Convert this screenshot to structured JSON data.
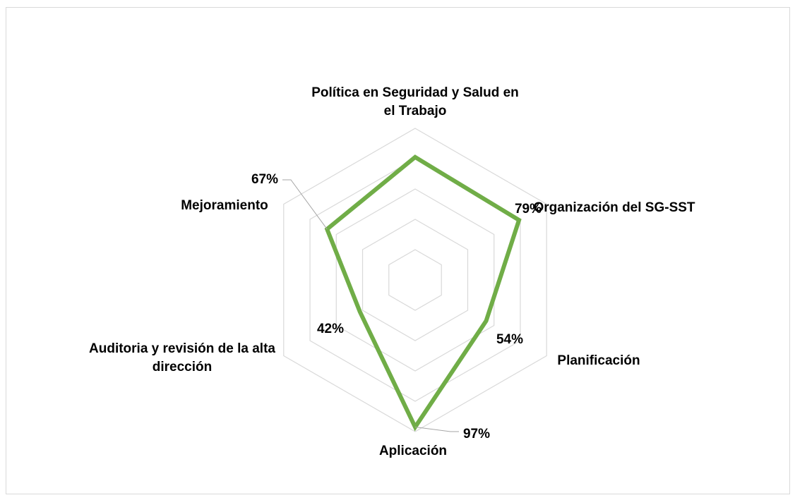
{
  "chart_data": {
    "type": "radar",
    "categories": [
      "Política en Seguridad y Salud en el Trabajo",
      "Organización del SG-SST",
      "Planificación",
      "Aplicación",
      "Auditoria y revisión de la alta dirección",
      "Mejoramiento"
    ],
    "values": [
      81,
      79,
      54,
      97,
      42,
      67
    ],
    "value_labels": [
      null,
      "79%",
      "54%",
      "97%",
      "42%",
      "67%"
    ],
    "color": "#70ad47",
    "ylim": [
      0,
      100
    ],
    "yticks": [
      0,
      20,
      40,
      60,
      80,
      100
    ],
    "grid": true
  }
}
